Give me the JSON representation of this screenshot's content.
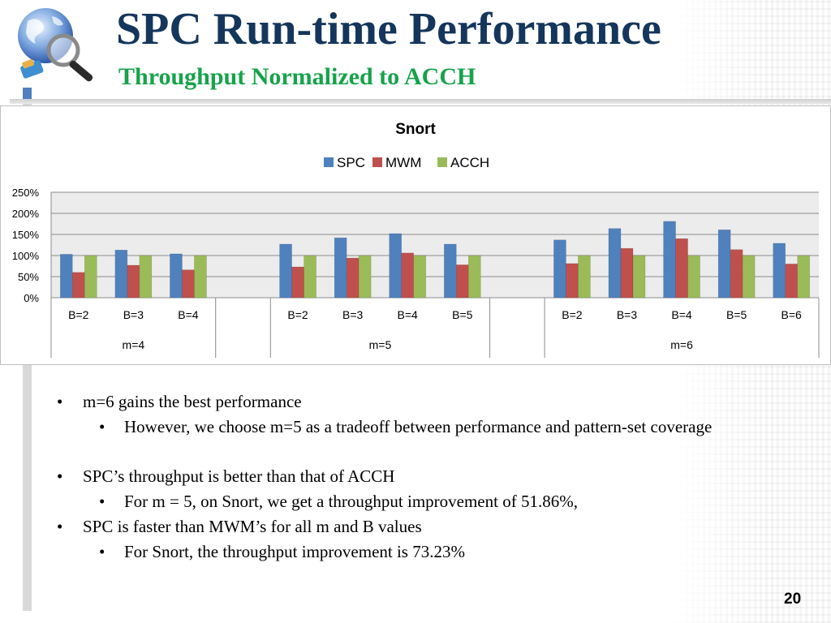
{
  "slide": {
    "title": "SPC Run-time Performance",
    "subtitle": "Throughput Normalized to ACCH",
    "page_number": "20"
  },
  "colors": {
    "title": "#14365c",
    "subtitle": "#16a34a",
    "SPC": "#4f81bd",
    "MWM": "#c0504d",
    "ACCH": "#9bbb59"
  },
  "icons": {
    "logo": "globe-magnifier-icon"
  },
  "bullets": [
    {
      "level": 1,
      "text": "m=6 gains the best performance"
    },
    {
      "level": 2,
      "text": "However, we choose m=5 as a tradeoff between performance and pattern-set coverage"
    },
    {
      "level": 0,
      "text": ""
    },
    {
      "level": 1,
      "text": "SPC’s throughput is better than that of ACCH"
    },
    {
      "level": 2,
      "text": "For m = 5, on Snort, we get a throughput improvement of 51.86%,"
    },
    {
      "level": 1,
      "text": "SPC is faster than MWM’s for all m and B values"
    },
    {
      "level": 2,
      "text": "For Snort, the throughput improvement is 73.23%"
    }
  ],
  "chart_data": {
    "type": "bar",
    "title": "Snort",
    "legend_position": "top",
    "grid": true,
    "ylim": [
      0,
      250
    ],
    "yticks": [
      "0%",
      "50%",
      "100%",
      "150%",
      "200%",
      "250%"
    ],
    "ytick_values": [
      0,
      50,
      100,
      150,
      200,
      250
    ],
    "groups": [
      {
        "label": "m=4",
        "categories": [
          "B=2",
          "B=3",
          "B=4"
        ]
      },
      {
        "label": "",
        "categories": [
          ""
        ]
      },
      {
        "label": "m=5",
        "categories": [
          "B=2",
          "B=3",
          "B=4",
          "B=5"
        ]
      },
      {
        "label": "",
        "categories": [
          ""
        ]
      },
      {
        "label": "m=6",
        "categories": [
          "B=2",
          "B=3",
          "B=4",
          "B=5",
          "B=6"
        ]
      }
    ],
    "series": [
      {
        "name": "SPC",
        "values": [
          103,
          113,
          104,
          null,
          127,
          142,
          152,
          127,
          null,
          137,
          164,
          181,
          161,
          129
        ]
      },
      {
        "name": "MWM",
        "values": [
          60,
          77,
          66,
          null,
          73,
          94,
          106,
          78,
          null,
          81,
          117,
          140,
          114,
          80
        ]
      },
      {
        "name": "ACCH",
        "values": [
          100,
          100,
          100,
          null,
          100,
          100,
          100,
          100,
          null,
          100,
          100,
          100,
          100,
          100
        ]
      }
    ]
  }
}
